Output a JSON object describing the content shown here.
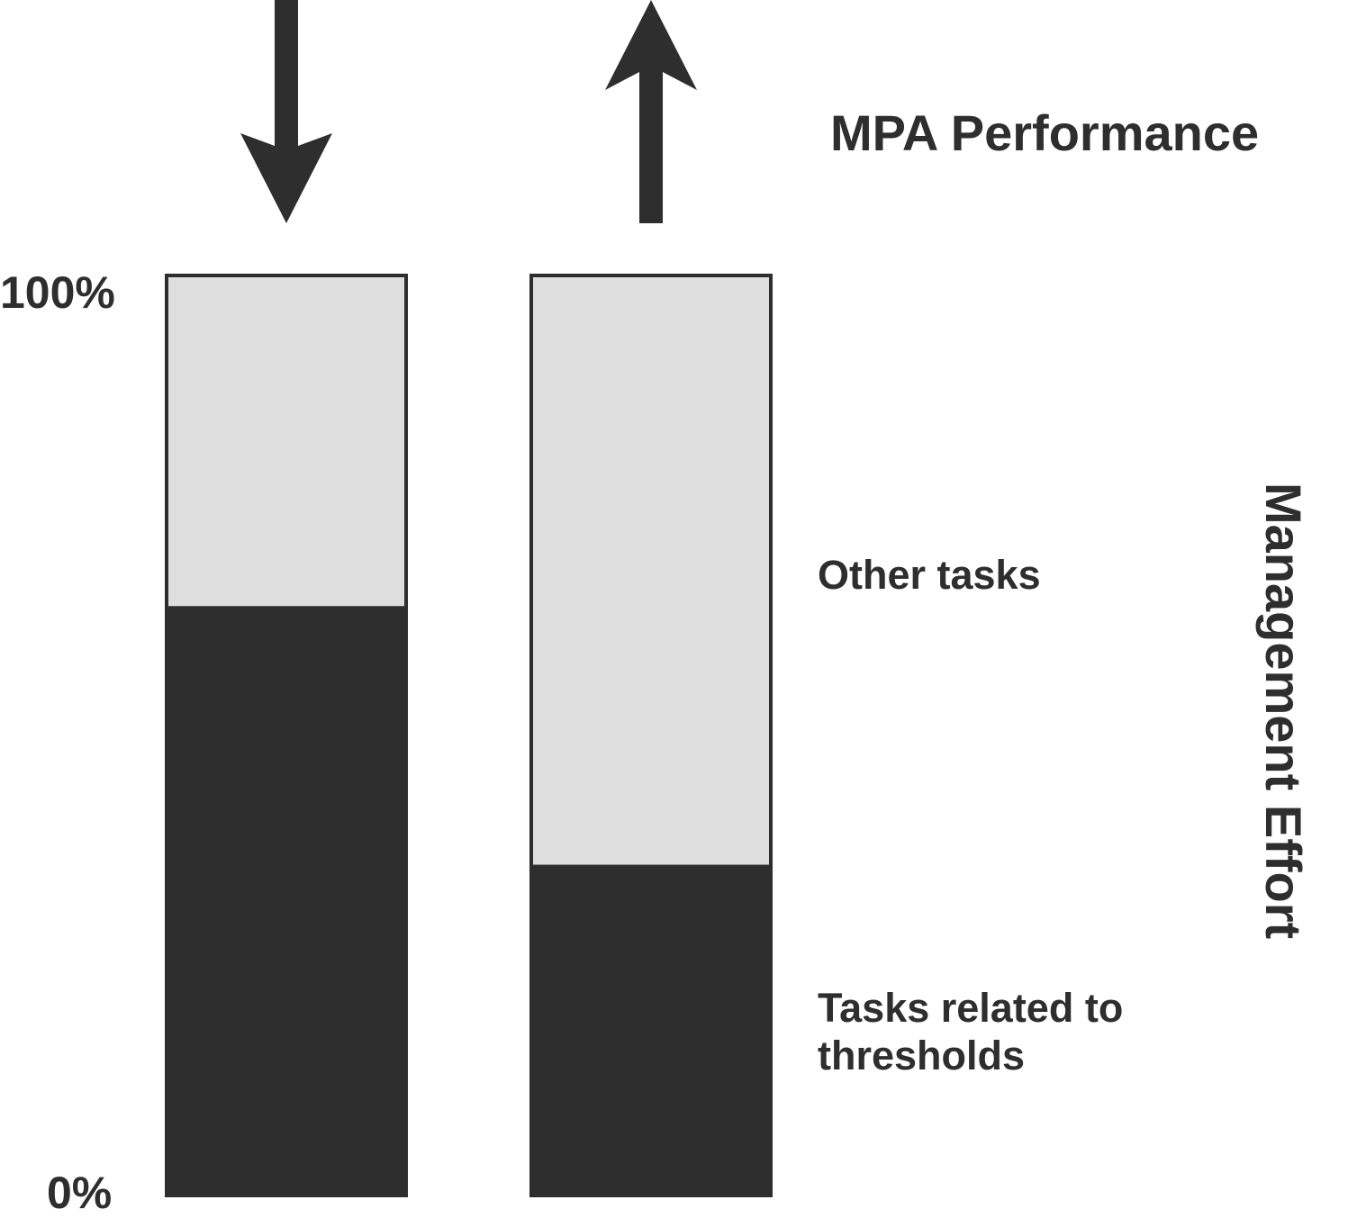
{
  "chart_data": {
    "type": "bar",
    "stacked": true,
    "categories": [
      "",
      ""
    ],
    "series": [
      {
        "name": "Tasks related to thresholds",
        "values": [
          64,
          36
        ],
        "color": "#2e2e2e"
      },
      {
        "name": "Other tasks",
        "values": [
          36,
          64
        ],
        "color": "#dedede"
      }
    ],
    "ylim": [
      0,
      100
    ],
    "yticks": [
      "0%",
      "100%"
    ],
    "arrows": [
      "down",
      "up"
    ],
    "xlabel": "MPA Performance",
    "ylabel": "Management Effort",
    "legend": {
      "placement": "right",
      "items": [
        "Other tasks",
        "Tasks related to\nthresholds"
      ]
    },
    "grid": false,
    "colors": {
      "dark": "#2e2e2e",
      "light": "#dedede",
      "background": "#ffffff"
    }
  }
}
